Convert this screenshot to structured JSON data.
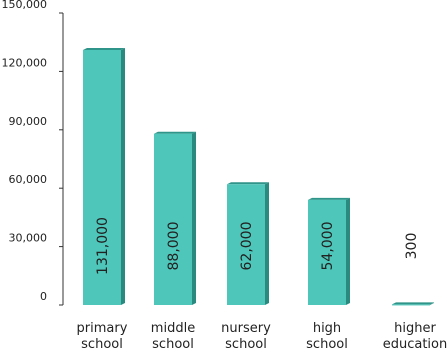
{
  "chart_data": {
    "type": "bar",
    "title": "",
    "xlabel": "",
    "ylabel": "",
    "categories": [
      [
        "primary",
        "school"
      ],
      [
        "middle",
        "school"
      ],
      [
        "nursery",
        "school"
      ],
      [
        "high",
        "school"
      ],
      [
        "higher",
        "education"
      ]
    ],
    "values": [
      131000,
      88000,
      62000,
      54000,
      300
    ],
    "data_labels": [
      "131,000",
      "88,000",
      "62,000",
      "54,000",
      "300"
    ],
    "ylim": [
      0,
      150000
    ],
    "yticks": [
      0,
      30000,
      60000,
      90000,
      120000,
      150000
    ],
    "ytick_labels": [
      "0",
      "30,000",
      "60,000",
      "90,000",
      "120,000",
      "150,000"
    ],
    "grid": false,
    "legend": "none",
    "colors": {
      "bar_face": "#4ec6ba",
      "bar_side": "#2b8a7f",
      "bar_top": "#2f9489",
      "axis": "#333333",
      "text": "#222222"
    }
  }
}
